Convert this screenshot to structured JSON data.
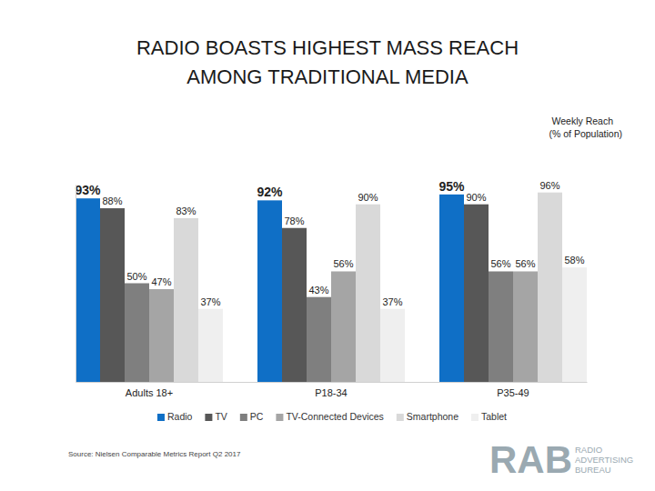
{
  "chart_data": {
    "type": "bar",
    "title": "RADIO BOASTS HIGHEST MASS REACH AMONG TRADITIONAL MEDIA",
    "subtitle": "Weekly Reach (% of Population)",
    "source": "Source: Nielsen Comparable Metrics Report Q2 2017",
    "logo": {
      "mark": "RAB",
      "text": "RADIO ADVERTISING BUREAU"
    },
    "categories": [
      "Adults 18+",
      "P18-34",
      "P35-49"
    ],
    "series": [
      {
        "name": "Radio",
        "color": "#0f6fc6",
        "values": [
          93,
          92,
          95
        ],
        "value_labels": [
          "93%",
          "92%",
          "95%"
        ]
      },
      {
        "name": "TV",
        "color": "#575757",
        "values": [
          88,
          78,
          90
        ],
        "value_labels": [
          "88%",
          "78%",
          "90%"
        ]
      },
      {
        "name": "PC",
        "color": "#7f7f7f",
        "values": [
          50,
          43,
          56
        ],
        "value_labels": [
          "50%",
          "43%",
          "56%"
        ]
      },
      {
        "name": "TV-Connected Devices",
        "color": "#a5a5a5",
        "values": [
          47,
          56,
          56
        ],
        "value_labels": [
          "47%",
          "56%",
          "56%"
        ]
      },
      {
        "name": "Smartphone",
        "color": "#d9d9d9",
        "values": [
          83,
          90,
          96
        ],
        "value_labels": [
          "83%",
          "90%",
          "96%"
        ]
      },
      {
        "name": "Tablet",
        "color": "#efefef",
        "values": [
          37,
          37,
          58
        ],
        "value_labels": [
          "37%",
          "37%",
          "58%"
        ]
      }
    ],
    "ylim": [
      0,
      100
    ],
    "data_labels": true,
    "tick_labels": "x",
    "grid": false,
    "legend": "bottom"
  }
}
